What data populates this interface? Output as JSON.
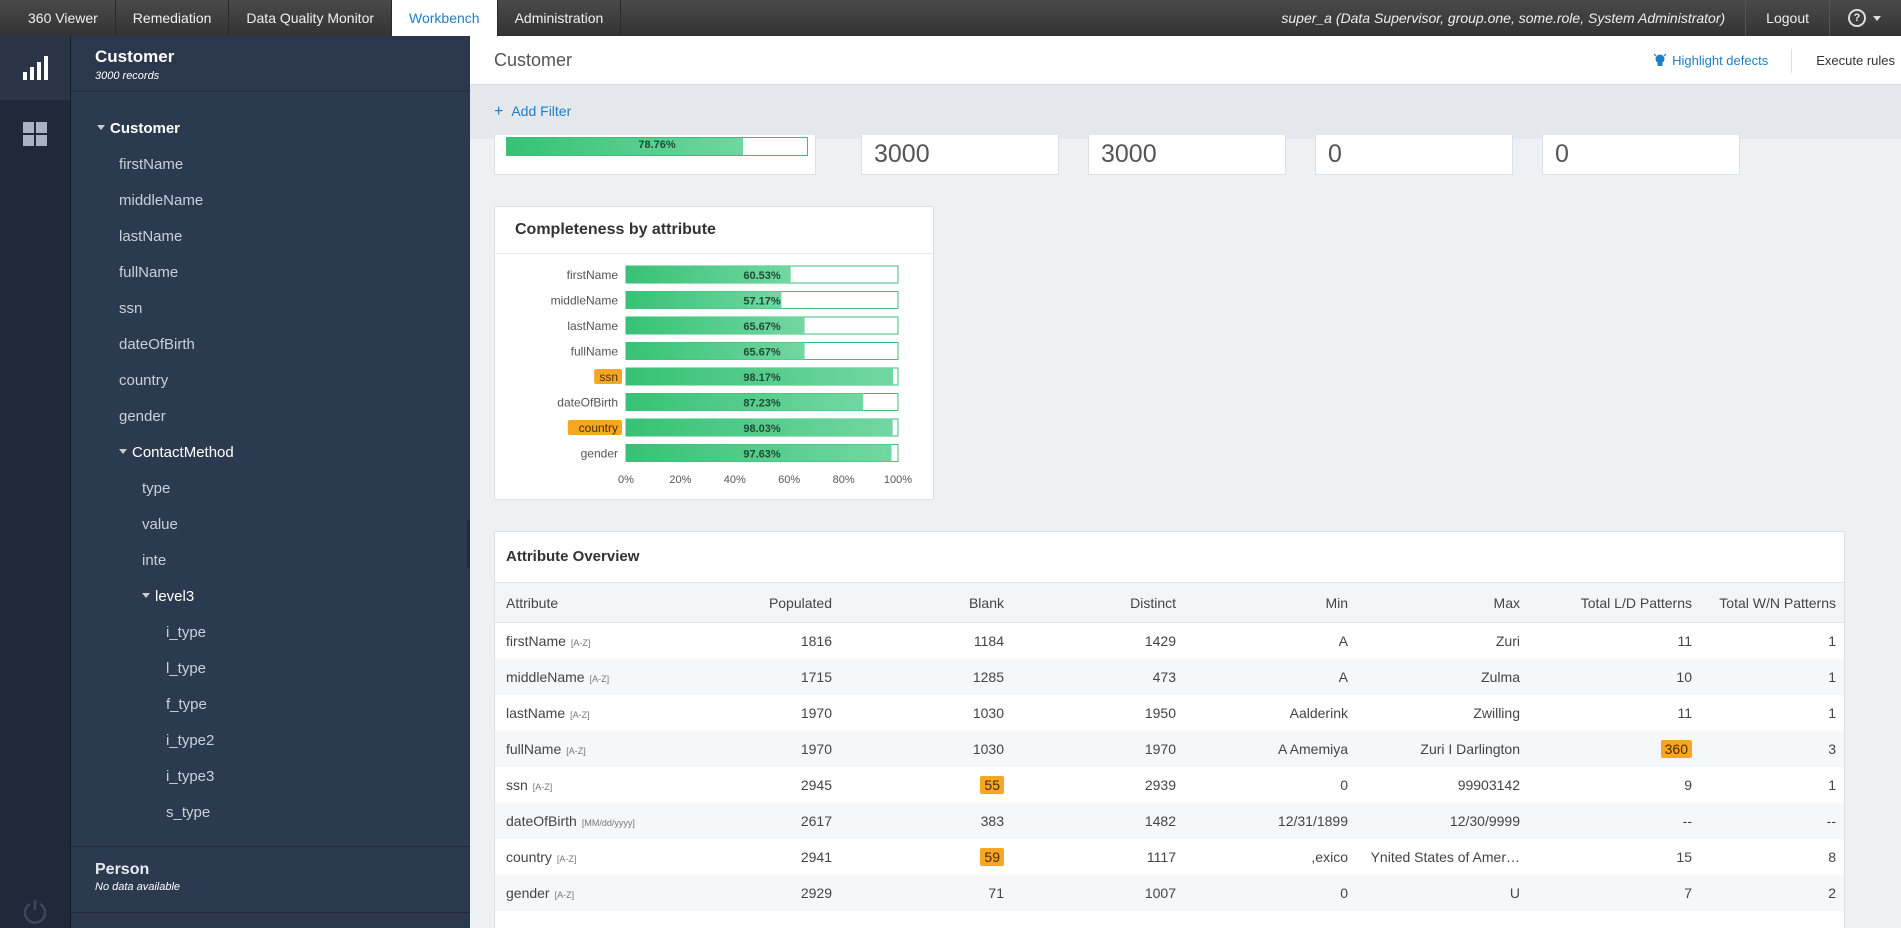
{
  "nav": {
    "tabs": [
      "360 Viewer",
      "Remediation",
      "Data Quality Monitor",
      "Workbench",
      "Administration"
    ],
    "active_tab": "Workbench",
    "user": "super_a (Data Supervisor, group.one, some.role, System Administrator)",
    "logout": "Logout",
    "help_glyph": "?"
  },
  "rail": {
    "icons": [
      "bar-chart-icon",
      "grid-icon",
      "power-icon"
    ]
  },
  "tree": {
    "entity": "Customer",
    "records": "3000 records",
    "nodes": [
      {
        "label": "Customer",
        "kind": "root"
      },
      {
        "label": "firstName"
      },
      {
        "label": "middleName"
      },
      {
        "label": "lastName"
      },
      {
        "label": "fullName"
      },
      {
        "label": "ssn"
      },
      {
        "label": "dateOfBirth"
      },
      {
        "label": "country"
      },
      {
        "label": "gender"
      },
      {
        "label": "ContactMethod",
        "kind": "branch"
      },
      {
        "label": "type"
      },
      {
        "label": "value"
      },
      {
        "label": "inte"
      },
      {
        "label": "level3",
        "kind": "branch"
      },
      {
        "label": "i_type"
      },
      {
        "label": "l_type"
      },
      {
        "label": "f_type"
      },
      {
        "label": "i_type2"
      },
      {
        "label": "i_type3"
      },
      {
        "label": "s_type"
      }
    ],
    "footer_entity": "Person",
    "footer_sub": "No data available"
  },
  "main": {
    "title": "Customer",
    "highlight_defects": "Highlight defects",
    "execute_rules": "Execute rules",
    "add_filter": "Add Filter",
    "summary": {
      "overall_completeness": "78.76%",
      "overall_completeness_value": 78.76,
      "metrics": [
        "3000",
        "3000",
        "0",
        "0"
      ]
    },
    "completeness_card_title": "Completeness by attribute",
    "overview_title": "Attribute Overview",
    "table": {
      "columns": [
        "Attribute",
        "Populated",
        "Blank",
        "Distinct",
        "Min",
        "Max",
        "Total L/D Patterns",
        "Total W/N Patterns"
      ],
      "rows": [
        {
          "attr": "firstName",
          "fmt": "[A-Z]",
          "populated": "1816",
          "blank": "1184",
          "distinct": "1429",
          "min": "A",
          "max": "Zuri",
          "ld": "11",
          "wn": "1"
        },
        {
          "attr": "middleName",
          "fmt": "[A-Z]",
          "populated": "1715",
          "blank": "1285",
          "distinct": "473",
          "min": "A",
          "max": "Zulma",
          "ld": "10",
          "wn": "1"
        },
        {
          "attr": "lastName",
          "fmt": "[A-Z]",
          "populated": "1970",
          "blank": "1030",
          "distinct": "1950",
          "min": "Aalderink",
          "max": "Zwilling",
          "ld": "11",
          "wn": "1"
        },
        {
          "attr": "fullName",
          "fmt": "[A-Z]",
          "populated": "1970",
          "blank": "1030",
          "distinct": "1970",
          "min": "A Amemiya",
          "max": "Zuri I Darlington",
          "ld": "360",
          "ld_hl": true,
          "wn": "3"
        },
        {
          "attr": "ssn",
          "fmt": "[A-Z]",
          "populated": "2945",
          "blank": "55",
          "blank_hl": true,
          "distinct": "2939",
          "min": "0",
          "max": "99903142",
          "ld": "9",
          "wn": "1"
        },
        {
          "attr": "dateOfBirth",
          "fmt": "[MM/dd/yyyy]",
          "populated": "2617",
          "blank": "383",
          "distinct": "1482",
          "min": "12/31/1899",
          "max": "12/30/9999",
          "ld": "--",
          "wn": "--"
        },
        {
          "attr": "country",
          "fmt": "[A-Z]",
          "populated": "2941",
          "blank": "59",
          "blank_hl": true,
          "distinct": "1117",
          "min": ",exico",
          "max": "Ynited States of Amer…",
          "ld": "15",
          "wn": "8"
        },
        {
          "attr": "gender",
          "fmt": "[A-Z]",
          "populated": "2929",
          "blank": "71",
          "distinct": "1007",
          "min": "0",
          "max": "U",
          "ld": "7",
          "wn": "2"
        }
      ]
    }
  },
  "chart_data": {
    "type": "bar",
    "orientation": "horizontal",
    "title": "Completeness by attribute",
    "categories": [
      "firstName",
      "middleName",
      "lastName",
      "fullName",
      "ssn",
      "dateOfBirth",
      "country",
      "gender"
    ],
    "values": [
      60.53,
      57.17,
      65.67,
      65.67,
      98.17,
      87.23,
      98.03,
      97.63
    ],
    "value_labels": [
      "60.53%",
      "57.17%",
      "65.67%",
      "65.67%",
      "98.17%",
      "87.23%",
      "98.03%",
      "97.63%"
    ],
    "highlighted_categories": [
      "ssn",
      "country"
    ],
    "x_ticks": [
      "0%",
      "20%",
      "40%",
      "60%",
      "80%",
      "100%"
    ],
    "xlim": [
      0,
      100
    ],
    "bar_color": "#37c275",
    "highlight_color": "#f5a623"
  }
}
